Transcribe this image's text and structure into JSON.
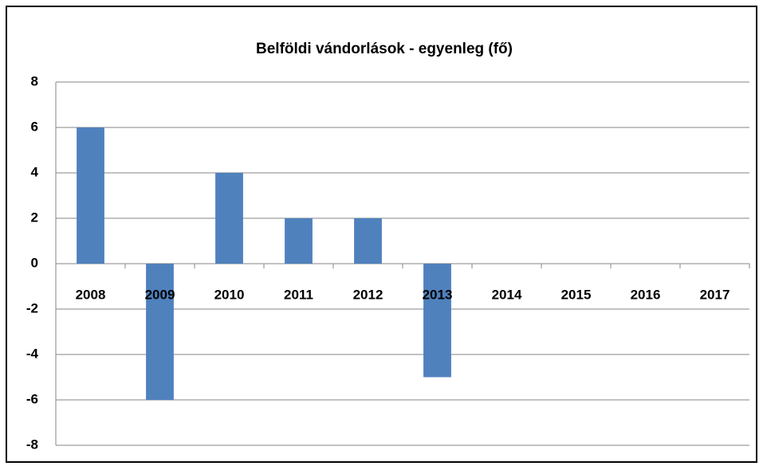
{
  "chart_data": {
    "type": "bar",
    "title": "Belföldi vándorlások - egyenleg (fő)",
    "categories": [
      "2008",
      "2009",
      "2010",
      "2011",
      "2012",
      "2013",
      "2014",
      "2015",
      "2016",
      "2017"
    ],
    "values": [
      6,
      -6,
      4,
      2,
      2,
      -5,
      0,
      0,
      0,
      0
    ],
    "color": "#4f81bd",
    "ylim": [
      -8,
      8
    ],
    "yticks": [
      -8,
      -6,
      -4,
      -2,
      0,
      2,
      4,
      6,
      8
    ],
    "grid": true
  }
}
